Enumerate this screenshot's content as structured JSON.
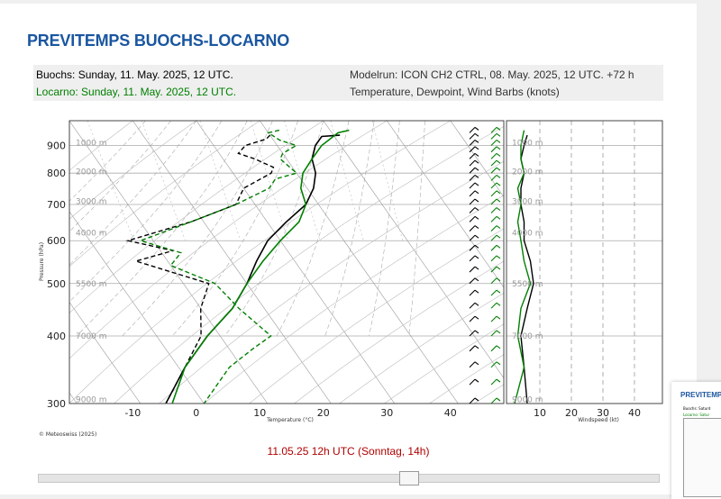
{
  "page_title": "PREVITEMPS BUOCHS-LOCARNO",
  "info": {
    "station1": "Buochs: Sunday, 11. May. 2025, 12 UTC.",
    "station2": "Locarno: Sunday, 11. May. 2025, 12 UTC.",
    "modelrun": "Modelrun: ICON CH2 CTRL, 08. May. 2025, 12 UTC. +72 h",
    "variables": "Temperature, Dewpoint, Wind Barbs (knots)"
  },
  "time_label": "11.05.25 12h UTC (Sonntag, 14h)",
  "thumbnail": {
    "title": "PREVITEMPS",
    "line1": "Buochs: Saturd",
    "line2": "Locarno: Satur"
  },
  "chart_data": {
    "type": "line",
    "title": "",
    "ylabel": "Pressure (hPa)",
    "xlabel": "Temperature (°C)",
    "xlabel_wind": "Windspeed (kt)",
    "copyright": "© Meteoswiss (2025)",
    "y_log": true,
    "ylim": [
      1000,
      300
    ],
    "xlim": [
      -20,
      48
    ],
    "pressure_ticks": [
      "300",
      "400",
      "500",
      "600",
      "700",
      "800",
      "900"
    ],
    "pressure_tick_values": [
      300,
      400,
      500,
      600,
      700,
      800,
      900
    ],
    "temp_ticks": [
      "-10",
      "0",
      "10",
      "20",
      "30",
      "40"
    ],
    "temp_tick_values": [
      -10,
      0,
      10,
      20,
      30,
      40
    ],
    "wind_ticks": [
      "10",
      "20",
      "30",
      "40"
    ],
    "wind_tick_values": [
      10,
      20,
      30,
      40
    ],
    "wind_xlim": [
      0,
      48
    ],
    "height_labels": [
      "9000 m",
      "7000 m",
      "5500 m",
      "4000 m",
      "3000 m",
      "2000 m",
      "1000 m"
    ],
    "height_pressures": [
      305,
      400,
      500,
      620,
      710,
      805,
      910
    ],
    "grid": true,
    "colors": {
      "buochs": "#000000",
      "locarno": "#008000"
    },
    "series": [
      {
        "name": "Buochs",
        "color": "#000000",
        "temperature": [
          [
            940,
            21
          ],
          [
            935,
            18
          ],
          [
            900,
            16
          ],
          [
            850,
            14
          ],
          [
            800,
            13
          ],
          [
            750,
            11
          ],
          [
            700,
            8
          ],
          [
            650,
            3
          ],
          [
            600,
            -2
          ],
          [
            550,
            -6
          ],
          [
            500,
            -10
          ],
          [
            450,
            -15
          ],
          [
            400,
            -22
          ],
          [
            350,
            -29
          ],
          [
            300,
            -36
          ]
        ],
        "dewpoint": [
          [
            940,
            10
          ],
          [
            925,
            9
          ],
          [
            900,
            5
          ],
          [
            870,
            3
          ],
          [
            850,
            5
          ],
          [
            820,
            7
          ],
          [
            800,
            6
          ],
          [
            750,
            0
          ],
          [
            700,
            -3
          ],
          [
            650,
            -12
          ],
          [
            600,
            -24
          ],
          [
            575,
            -18
          ],
          [
            550,
            -25
          ],
          [
            500,
            -16
          ],
          [
            450,
            -20
          ],
          [
            400,
            -23
          ],
          [
            350,
            -29
          ],
          [
            300,
            -36
          ]
        ],
        "wind_speed": [
          [
            940,
            6
          ],
          [
            900,
            5
          ],
          [
            850,
            4
          ],
          [
            800,
            5
          ],
          [
            750,
            4
          ],
          [
            700,
            4
          ],
          [
            650,
            5
          ],
          [
            600,
            5
          ],
          [
            550,
            7
          ],
          [
            500,
            8
          ],
          [
            450,
            6
          ],
          [
            400,
            4
          ],
          [
            350,
            5
          ],
          [
            300,
            6
          ]
        ]
      },
      {
        "name": "Locarno",
        "color": "#008000",
        "temperature": [
          [
            960,
            23
          ],
          [
            950,
            21
          ],
          [
            900,
            17
          ],
          [
            850,
            14
          ],
          [
            800,
            11
          ],
          [
            750,
            9
          ],
          [
            700,
            8
          ],
          [
            650,
            5
          ],
          [
            600,
            0
          ],
          [
            550,
            -5
          ],
          [
            500,
            -10
          ],
          [
            450,
            -15
          ],
          [
            400,
            -22
          ],
          [
            350,
            -29
          ],
          [
            300,
            -35
          ]
        ],
        "dewpoint": [
          [
            960,
            12
          ],
          [
            950,
            10
          ],
          [
            920,
            11
          ],
          [
            900,
            13
          ],
          [
            870,
            10
          ],
          [
            850,
            9
          ],
          [
            800,
            10
          ],
          [
            780,
            6
          ],
          [
            750,
            4
          ],
          [
            700,
            -3
          ],
          [
            650,
            -12
          ],
          [
            600,
            -22
          ],
          [
            570,
            -17
          ],
          [
            540,
            -20
          ],
          [
            500,
            -15
          ],
          [
            450,
            -14
          ],
          [
            400,
            -12
          ],
          [
            380,
            -16
          ],
          [
            350,
            -22
          ],
          [
            300,
            -30
          ]
        ],
        "wind_speed": [
          [
            960,
            5
          ],
          [
            900,
            4
          ],
          [
            850,
            4
          ],
          [
            800,
            5
          ],
          [
            750,
            3
          ],
          [
            700,
            4
          ],
          [
            650,
            3
          ],
          [
            600,
            4
          ],
          [
            550,
            5
          ],
          [
            500,
            7
          ],
          [
            450,
            4
          ],
          [
            400,
            3
          ],
          [
            350,
            5
          ],
          [
            300,
            2
          ]
        ]
      }
    ]
  }
}
